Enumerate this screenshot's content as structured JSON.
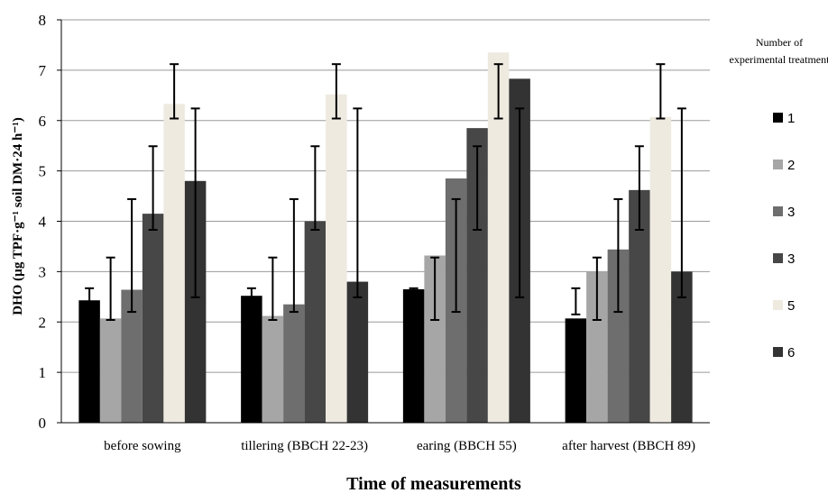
{
  "chart_data": {
    "type": "bar",
    "xlabel": "Time of measurements",
    "ylabel": "DHO (µg TPF·g⁻¹ soil DM·24 h⁻¹)",
    "ylim": [
      0,
      8
    ],
    "yticks": [
      "0",
      "1",
      "2",
      "3",
      "4",
      "5",
      "6",
      "7",
      "8"
    ],
    "grid": true,
    "legend_position": "right",
    "legend_title": [
      "Number of",
      "experimental treatment"
    ],
    "categories": [
      "before sowing",
      "tillering (BBCH 22-23)",
      "earing (BBCH 55)",
      "after harvest (BBCH 89)"
    ],
    "series": [
      {
        "name": "1",
        "color": "#000000",
        "values": [
          2.43,
          2.52,
          2.65,
          2.07
        ],
        "err_low": [
          2.15,
          2.15,
          2.15,
          2.15
        ],
        "err_high": [
          2.67,
          2.67,
          2.67,
          2.67
        ]
      },
      {
        "name": "2",
        "color": "#a6a6a6",
        "values": [
          2.07,
          2.12,
          3.32,
          3.0
        ],
        "err_low": [
          2.04,
          2.04,
          2.04,
          2.04
        ],
        "err_high": [
          3.28,
          3.28,
          3.28,
          3.28
        ]
      },
      {
        "name": "3",
        "color": "#6e6e6e",
        "values": [
          2.64,
          2.35,
          4.85,
          3.44
        ],
        "err_low": [
          2.2,
          2.2,
          2.2,
          2.2
        ],
        "err_high": [
          4.44,
          4.44,
          4.44,
          4.44
        ]
      },
      {
        "name": "3",
        "color": "#474747",
        "values": [
          4.15,
          4.0,
          5.85,
          4.62
        ],
        "err_low": [
          3.83,
          3.83,
          3.83,
          3.83
        ],
        "err_high": [
          5.49,
          5.49,
          5.49,
          5.49
        ]
      },
      {
        "name": "5",
        "color": "#eeeae0",
        "values": [
          6.33,
          6.52,
          7.35,
          6.07
        ],
        "err_low": [
          6.04,
          6.04,
          6.04,
          6.04
        ],
        "err_high": [
          7.12,
          7.12,
          7.12,
          7.12
        ]
      },
      {
        "name": "6",
        "color": "#333333",
        "values": [
          4.8,
          2.8,
          6.83,
          3.0
        ],
        "err_low": [
          2.49,
          2.49,
          2.49,
          2.49
        ],
        "err_high": [
          6.24,
          6.24,
          6.24,
          6.24
        ]
      }
    ]
  }
}
